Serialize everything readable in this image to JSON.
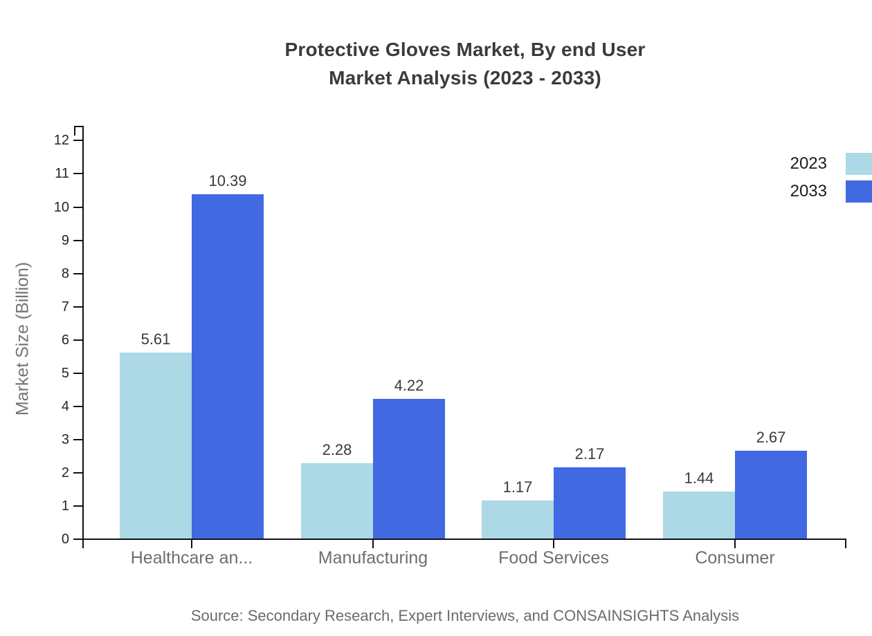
{
  "title": {
    "line1": "Protective Gloves Market, By end User",
    "line2": "Market Analysis (2023 - 2033)"
  },
  "source": "Source: Secondary Research, Expert Interviews, and CONSAINSIGHTS Analysis",
  "chart_data": {
    "type": "bar",
    "title": "Protective Gloves Market, By end User Market Analysis (2023 - 2033)",
    "categories": [
      "Healthcare an...",
      "Manufacturing",
      "Food Services",
      "Consumer"
    ],
    "series": [
      {
        "name": "2023",
        "color": "#ADD8E6",
        "values": [
          5.61,
          2.28,
          1.17,
          1.44
        ]
      },
      {
        "name": "2033",
        "color": "#4169E1",
        "values": [
          10.39,
          4.22,
          2.17,
          2.67
        ]
      }
    ],
    "xlabel": "",
    "ylabel": "Market Size (Billion)",
    "ylim": [
      0,
      12.4
    ],
    "yticks": [
      0,
      1,
      2,
      3,
      4,
      5,
      6,
      7,
      8,
      9,
      10,
      11,
      12
    ],
    "grid": false,
    "legend_position": "top-right",
    "value_labels": true,
    "axis_color": "#111111"
  }
}
